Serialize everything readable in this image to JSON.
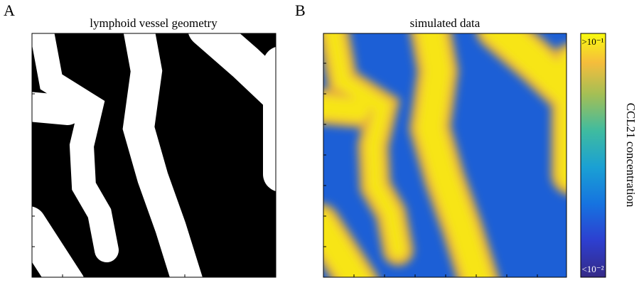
{
  "panels": [
    {
      "label": "A",
      "title": "lymphoid vessel geometry"
    },
    {
      "label": "B",
      "title": "simulated data"
    }
  ],
  "colorbar": {
    "label": "CCL21 concentration",
    "max_label": ">10⁻¹",
    "min_label": "<10⁻²"
  }
}
